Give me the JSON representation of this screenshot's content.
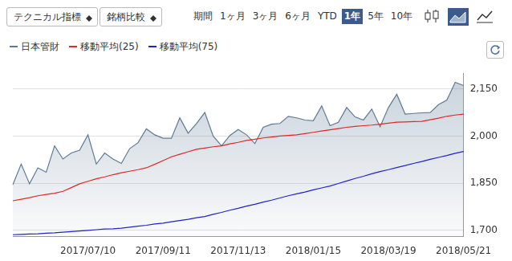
{
  "toolbar": {
    "selects": [
      "テクニカル指標",
      "銘柄比較"
    ],
    "period_label": "期間",
    "periods": [
      "1ヶ月",
      "3ヶ月",
      "6ヶ月",
      "YTD",
      "1年",
      "5年",
      "10年"
    ],
    "active_period": "1年"
  },
  "chart_data": {
    "type": "line",
    "legend": "top-left",
    "grid": true,
    "categories": [
      null,
      null,
      null,
      null,
      null,
      null,
      null,
      null,
      null,
      "2017/07/10",
      null,
      null,
      null,
      null,
      null,
      null,
      null,
      null,
      "2017/09/11",
      null,
      null,
      null,
      null,
      null,
      null,
      null,
      null,
      "2017/11/13",
      null,
      null,
      null,
      null,
      null,
      null,
      null,
      null,
      "2018/01/15",
      null,
      null,
      null,
      null,
      null,
      null,
      null,
      null,
      "2018/03/19",
      null,
      null,
      null,
      null,
      null,
      null,
      null,
      null,
      "2018/05/21"
    ],
    "series": [
      {
        "name": "日本管財",
        "color": "#5f7a96",
        "type": "area",
        "values": [
          1845,
          1911,
          1848,
          1899,
          1885,
          1969,
          1927,
          1946,
          1955,
          2004,
          1911,
          1946,
          1927,
          1913,
          1960,
          1979,
          2023,
          2004,
          1993,
          1993,
          2058,
          2009,
          2040,
          2075,
          2000,
          1969,
          2002,
          2021,
          2004,
          1976,
          2028,
          2038,
          2040,
          2063,
          2058,
          2051,
          2049,
          2096,
          2033,
          2044,
          2091,
          2061,
          2051,
          2086,
          2030,
          2091,
          2133,
          2070,
          2072,
          2074,
          2075,
          2100,
          2115,
          2171,
          2161
        ]
      },
      {
        "name": "移動平均(25)",
        "color": "#e02828",
        "type": "line",
        "values": [
          1794,
          1799,
          1804,
          1810,
          1814,
          1818,
          1824,
          1836,
          1848,
          1856,
          1864,
          1870,
          1877,
          1883,
          1888,
          1893,
          1899,
          1910,
          1922,
          1934,
          1942,
          1950,
          1958,
          1962,
          1966,
          1969,
          1975,
          1980,
          1986,
          1990,
          1994,
          1997,
          2000,
          2002,
          2004,
          2008,
          2012,
          2016,
          2020,
          2024,
          2028,
          2031,
          2033,
          2035,
          2038,
          2041,
          2044,
          2045,
          2046,
          2047,
          2052,
          2057,
          2063,
          2067,
          2070
        ]
      },
      {
        "name": "移動平均(75)",
        "color": "#2222cc",
        "type": "line",
        "values": [
          1686,
          1687,
          1688,
          1689,
          1691,
          1692,
          1694,
          1696,
          1698,
          1700,
          1702,
          1704,
          1705,
          1707,
          1710,
          1713,
          1716,
          1720,
          1723,
          1727,
          1731,
          1735,
          1740,
          1744,
          1751,
          1757,
          1764,
          1770,
          1777,
          1783,
          1790,
          1796,
          1803,
          1810,
          1816,
          1822,
          1829,
          1835,
          1841,
          1849,
          1857,
          1865,
          1872,
          1880,
          1887,
          1893,
          1900,
          1906,
          1913,
          1919,
          1926,
          1932,
          1938,
          1945,
          1951
        ]
      }
    ],
    "ylim": [
      1680,
      2200
    ],
    "yticks": [
      {
        "value": 1700,
        "label": "1,700"
      },
      {
        "value": 1850,
        "label": "1,850"
      },
      {
        "value": 2000,
        "label": "2,000"
      },
      {
        "value": 2150,
        "label": "2,150"
      }
    ]
  }
}
